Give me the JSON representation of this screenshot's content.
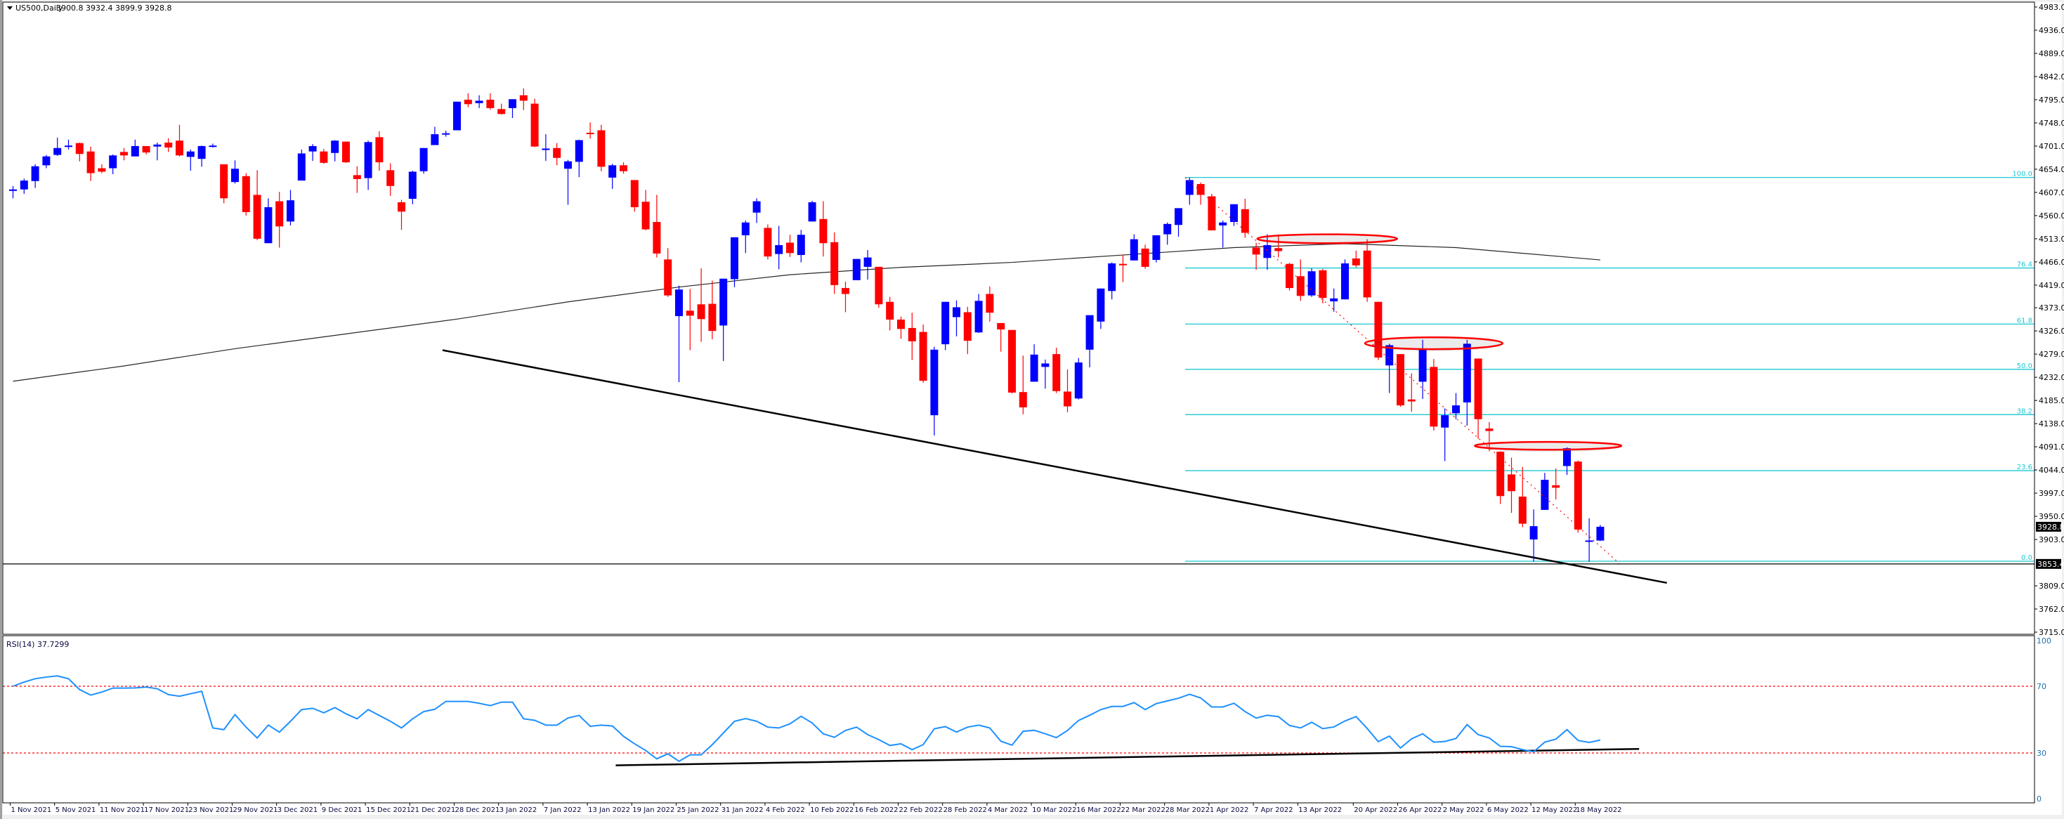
{
  "header": {
    "symbol_label": "US500,Daily",
    "ohlc": "3900.8 3932.4 3899.9 3928.8"
  },
  "rsi_label": "RSI(14) 37.7299",
  "chart_data": {
    "type": "candlestick",
    "title": "US500,Daily",
    "price_axis": {
      "range": [
        3715,
        4983
      ],
      "ticks": [
        "4983.0",
        "4936.0",
        "4889.0",
        "4842.0",
        "4795.0",
        "4748.0",
        "4701.0",
        "4654.0",
        "4607.0",
        "4560.0",
        "4513.0",
        "4466.0",
        "4419.0",
        "4373.0",
        "4326.0",
        "4279.0",
        "4232.0",
        "4185.0",
        "4138.0",
        "4091.0",
        "4044.0",
        "3997.0",
        "3950.0",
        "3903.0",
        "3809.0",
        "3762.0",
        "3715.0"
      ]
    },
    "current_price": {
      "value": 3928.8,
      "label": "3928.8"
    },
    "hline": {
      "value": 3853.4,
      "label": "3853.4"
    },
    "time_axis_labels": [
      {
        "bar": 0,
        "label": "1 Nov 2021"
      },
      {
        "bar": 4,
        "label": "5 Nov 2021"
      },
      {
        "bar": 8,
        "label": "11 Nov 2021"
      },
      {
        "bar": 12,
        "label": "17 Nov 2021"
      },
      {
        "bar": 16,
        "label": "23 Nov 2021"
      },
      {
        "bar": 20,
        "label": "29 Nov 2021"
      },
      {
        "bar": 24,
        "label": "3 Dec 2021"
      },
      {
        "bar": 28,
        "label": "9 Dec 2021"
      },
      {
        "bar": 32,
        "label": "15 Dec 2021"
      },
      {
        "bar": 36,
        "label": "21 Dec 2021"
      },
      {
        "bar": 40,
        "label": "28 Dec 2021"
      },
      {
        "bar": 44,
        "label": "3 Jan 2022"
      },
      {
        "bar": 48,
        "label": "7 Jan 2022"
      },
      {
        "bar": 52,
        "label": "13 Jan 2022"
      },
      {
        "bar": 56,
        "label": "19 Jan 2022"
      },
      {
        "bar": 60,
        "label": "25 Jan 2022"
      },
      {
        "bar": 64,
        "label": "31 Jan 2022"
      },
      {
        "bar": 68,
        "label": "4 Feb 2022"
      },
      {
        "bar": 72,
        "label": "10 Feb 2022"
      },
      {
        "bar": 76,
        "label": "16 Feb 2022"
      },
      {
        "bar": 80,
        "label": "22 Feb 2022"
      },
      {
        "bar": 84,
        "label": "28 Feb 2022"
      },
      {
        "bar": 88,
        "label": "4 Mar 2022"
      },
      {
        "bar": 92,
        "label": "10 Mar 2022"
      },
      {
        "bar": 96,
        "label": "16 Mar 2022"
      },
      {
        "bar": 100,
        "label": "22 Mar 2022"
      },
      {
        "bar": 104,
        "label": "28 Mar 2022"
      },
      {
        "bar": 108,
        "label": "1 Apr 2022"
      },
      {
        "bar": 112,
        "label": "7 Apr 2022"
      },
      {
        "bar": 116,
        "label": "13 Apr 2022"
      },
      {
        "bar": 121,
        "label": "20 Apr 2022"
      },
      {
        "bar": 125,
        "label": "26 Apr 2022"
      },
      {
        "bar": 129,
        "label": "2 May 2022"
      },
      {
        "bar": 133,
        "label": "6 May 2022"
      },
      {
        "bar": 137,
        "label": "12 May 2022"
      },
      {
        "bar": 141,
        "label": "18 May 2022"
      }
    ],
    "candles": [
      [
        4610,
        4620,
        4595,
        4613
      ],
      [
        4613,
        4635,
        4604,
        4631
      ],
      [
        4630,
        4664,
        4616,
        4660
      ],
      [
        4662,
        4683,
        4656,
        4680
      ],
      [
        4683,
        4718,
        4681,
        4697
      ],
      [
        4701,
        4714,
        4694,
        4702
      ],
      [
        4707,
        4708,
        4670,
        4685
      ],
      [
        4690,
        4700,
        4630,
        4646
      ],
      [
        4656,
        4664,
        4646,
        4649
      ],
      [
        4656,
        4684,
        4644,
        4682
      ],
      [
        4689,
        4697,
        4672,
        4682
      ],
      [
        4680,
        4714,
        4680,
        4701
      ],
      [
        4701,
        4701,
        4684,
        4688
      ],
      [
        4700,
        4708,
        4672,
        4704
      ],
      [
        4708,
        4717,
        4689,
        4698
      ],
      [
        4712,
        4744,
        4680,
        4682
      ],
      [
        4679,
        4694,
        4651,
        4690
      ],
      [
        4675,
        4702,
        4659,
        4701
      ],
      [
        4701,
        4706,
        4698,
        4702
      ],
      [
        4664,
        4664,
        4585,
        4595
      ],
      [
        4628,
        4672,
        4625,
        4655
      ],
      [
        4640,
        4646,
        4560,
        4567
      ],
      [
        4602,
        4652,
        4510,
        4513
      ],
      [
        4504,
        4595,
        4504,
        4577
      ],
      [
        4589,
        4608,
        4495,
        4538
      ],
      [
        4548,
        4612,
        4540,
        4591
      ],
      [
        4631,
        4694,
        4631,
        4686
      ],
      [
        4690,
        4705,
        4671,
        4701
      ],
      [
        4690,
        4695,
        4665,
        4667
      ],
      [
        4687,
        4713,
        4670,
        4712
      ],
      [
        4710,
        4710,
        4667,
        4668
      ],
      [
        4642,
        4660,
        4606,
        4634
      ],
      [
        4636,
        4712,
        4612,
        4709
      ],
      [
        4719,
        4731,
        4651,
        4668
      ],
      [
        4652,
        4666,
        4600,
        4620
      ],
      [
        4587,
        4592,
        4531,
        4568
      ],
      [
        4594,
        4651,
        4583,
        4649
      ],
      [
        4650,
        4697,
        4645,
        4697
      ],
      [
        4703,
        4740,
        4703,
        4725
      ],
      [
        4725,
        4732,
        4720,
        4727
      ],
      [
        4733,
        4791,
        4733,
        4791
      ],
      [
        4795,
        4808,
        4780,
        4786
      ],
      [
        4788,
        4804,
        4778,
        4793
      ],
      [
        4795,
        4808,
        4775,
        4778
      ],
      [
        4776,
        4787,
        4765,
        4766
      ],
      [
        4778,
        4796,
        4758,
        4796
      ],
      [
        4804,
        4818,
        4774,
        4793
      ],
      [
        4787,
        4797,
        4699,
        4700
      ],
      [
        4693,
        4725,
        4671,
        4696
      ],
      [
        4697,
        4707,
        4662,
        4677
      ],
      [
        4655,
        4673,
        4582,
        4670
      ],
      [
        4669,
        4714,
        4638,
        4713
      ],
      [
        4728,
        4749,
        4716,
        4726
      ],
      [
        4733,
        4744,
        4650,
        4659
      ],
      [
        4637,
        4665,
        4614,
        4662
      ],
      [
        4662,
        4668,
        4645,
        4650
      ],
      [
        4632,
        4632,
        4568,
        4577
      ],
      [
        4588,
        4612,
        4530,
        4532
      ],
      [
        4547,
        4602,
        4475,
        4483
      ],
      [
        4471,
        4494,
        4395,
        4398
      ],
      [
        4356,
        4418,
        4222,
        4410
      ],
      [
        4367,
        4411,
        4287,
        4357
      ],
      [
        4380,
        4453,
        4304,
        4350
      ],
      [
        4381,
        4428,
        4309,
        4326
      ],
      [
        4337,
        4432,
        4265,
        4432
      ],
      [
        4431,
        4516,
        4415,
        4516
      ],
      [
        4520,
        4550,
        4484,
        4546
      ],
      [
        4566,
        4595,
        4545,
        4589
      ],
      [
        4535,
        4542,
        4471,
        4477
      ],
      [
        4482,
        4539,
        4451,
        4500
      ],
      [
        4505,
        4521,
        4476,
        4484
      ],
      [
        4480,
        4531,
        4465,
        4521
      ],
      [
        4548,
        4590,
        4548,
        4587
      ],
      [
        4553,
        4589,
        4477,
        4504
      ],
      [
        4506,
        4526,
        4401,
        4419
      ],
      [
        4413,
        4426,
        4364,
        4401
      ],
      [
        4429,
        4472,
        4429,
        4472
      ],
      [
        4456,
        4490,
        4430,
        4475
      ],
      [
        4456,
        4456,
        4373,
        4380
      ],
      [
        4385,
        4395,
        4327,
        4349
      ],
      [
        4349,
        4355,
        4310,
        4330
      ],
      [
        4332,
        4363,
        4267,
        4305
      ],
      [
        4324,
        4339,
        4221,
        4225
      ],
      [
        4155,
        4294,
        4114,
        4288
      ],
      [
        4299,
        4385,
        4287,
        4385
      ],
      [
        4354,
        4388,
        4315,
        4374
      ],
      [
        4364,
        4375,
        4279,
        4306
      ],
      [
        4323,
        4401,
        4322,
        4387
      ],
      [
        4401,
        4416,
        4345,
        4363
      ],
      [
        4342,
        4342,
        4284,
        4329
      ],
      [
        4328,
        4328,
        4199,
        4201
      ],
      [
        4202,
        4276,
        4157,
        4171
      ],
      [
        4223,
        4299,
        4223,
        4278
      ],
      [
        4253,
        4268,
        4209,
        4260
      ],
      [
        4279,
        4292,
        4200,
        4204
      ],
      [
        4203,
        4248,
        4161,
        4173
      ],
      [
        4189,
        4271,
        4187,
        4262
      ],
      [
        4288,
        4358,
        4252,
        4358
      ],
      [
        4345,
        4412,
        4330,
        4412
      ],
      [
        4407,
        4465,
        4390,
        4463
      ],
      [
        4462,
        4481,
        4425,
        4461
      ],
      [
        4469,
        4522,
        4469,
        4512
      ],
      [
        4493,
        4501,
        4452,
        4456
      ],
      [
        4470,
        4520,
        4465,
        4520
      ],
      [
        4522,
        4546,
        4501,
        4543
      ],
      [
        4541,
        4575,
        4517,
        4575
      ],
      [
        4602,
        4637,
        4582,
        4632
      ],
      [
        4624,
        4627,
        4582,
        4602
      ],
      [
        4599,
        4604,
        4530,
        4530
      ],
      [
        4540,
        4550,
        4495,
        4546
      ],
      [
        4547,
        4583,
        4539,
        4583
      ],
      [
        4573,
        4594,
        4515,
        4525
      ],
      [
        4495,
        4505,
        4450,
        4481
      ],
      [
        4474,
        4522,
        4450,
        4500
      ],
      [
        4494,
        4521,
        4475,
        4488
      ],
      [
        4462,
        4464,
        4408,
        4413
      ],
      [
        4437,
        4471,
        4387,
        4397
      ],
      [
        4398,
        4453,
        4395,
        4447
      ],
      [
        4449,
        4452,
        4382,
        4393
      ],
      [
        4386,
        4412,
        4365,
        4392
      ],
      [
        4390,
        4471,
        4390,
        4463
      ],
      [
        4473,
        4489,
        4455,
        4459
      ],
      [
        4489,
        4512,
        4385,
        4394
      ],
      [
        4385,
        4385,
        4267,
        4272
      ],
      [
        4256,
        4300,
        4200,
        4297
      ],
      [
        4279,
        4279,
        4172,
        4175
      ],
      [
        4187,
        4240,
        4162,
        4183
      ],
      [
        4223,
        4308,
        4188,
        4288
      ],
      [
        4253,
        4269,
        4124,
        4132
      ],
      [
        4130,
        4169,
        4062,
        4155
      ],
      [
        4159,
        4200,
        4147,
        4175
      ],
      [
        4181,
        4308,
        4134,
        4300
      ],
      [
        4270,
        4270,
        4107,
        4147
      ],
      [
        4128,
        4141,
        4082,
        4123
      ],
      [
        4081,
        4082,
        3975,
        3991
      ],
      [
        4035,
        4069,
        3957,
        4001
      ],
      [
        3990,
        4050,
        3928,
        3935
      ],
      [
        3903,
        3964,
        3858,
        3930
      ],
      [
        3963,
        4038,
        3963,
        4024
      ],
      [
        4013,
        4047,
        3984,
        4008
      ],
      [
        4052,
        4090,
        4034,
        4088
      ],
      [
        4061,
        4063,
        3917,
        3923
      ],
      [
        3900,
        3946,
        3858,
        3901
      ],
      [
        3900.8,
        3932.4,
        3899.9,
        3928.8
      ]
    ],
    "sma200": [
      [
        0,
        4224
      ],
      [
        10,
        4255
      ],
      [
        20,
        4290
      ],
      [
        30,
        4320
      ],
      [
        40,
        4350
      ],
      [
        50,
        4385
      ],
      [
        60,
        4415
      ],
      [
        70,
        4440
      ],
      [
        80,
        4455
      ],
      [
        90,
        4465
      ],
      [
        100,
        4480
      ],
      [
        110,
        4495
      ],
      [
        120,
        4503
      ],
      [
        130,
        4495
      ],
      [
        143,
        4470
      ]
    ],
    "trendline": {
      "from": [
        38.7,
        4287
      ],
      "to": [
        149,
        3815
      ]
    },
    "dotted_trend": {
      "from": [
        105.6,
        4637
      ],
      "to": [
        144.7,
        3855
      ]
    },
    "ellipses": [
      {
        "bar_center": 118.4,
        "price": 4513,
        "bar_halfwidth": 6.3,
        "price_halfheight": 9
      },
      {
        "bar_center": 128.0,
        "price": 4301,
        "bar_halfwidth": 6.2,
        "price_halfheight": 12
      },
      {
        "bar_center": 138.3,
        "price": 4093,
        "bar_halfwidth": 6.6,
        "price_halfheight": 8
      }
    ],
    "fibonacci": {
      "start_bar": 105.6,
      "high": 4637.3,
      "low": 3858.9,
      "levels": [
        {
          "ratio": 100,
          "label": "100.0"
        },
        {
          "ratio": 76.4,
          "label": "76.4"
        },
        {
          "ratio": 61.8,
          "label": "61.8"
        },
        {
          "ratio": 50,
          "label": "50.0"
        },
        {
          "ratio": 38.2,
          "label": "38.2"
        },
        {
          "ratio": 23.6,
          "label": "23.6"
        },
        {
          "ratio": 0,
          "label": "0.0"
        }
      ]
    },
    "rsi": {
      "period": 14,
      "value": 37.7299,
      "levels": [
        70,
        30
      ],
      "axis_labels": [
        {
          "value": 100,
          "label": "100"
        },
        {
          "value": 70,
          "label": "70"
        },
        {
          "value": 30,
          "label": "30"
        },
        {
          "value": 0,
          "label": "0"
        }
      ],
      "trendline": {
        "from": [
          54.3,
          22.6
        ],
        "to": [
          146.5,
          32.4
        ]
      },
      "values": [
        70,
        72.5,
        74.5,
        75.5,
        76.2,
        74.5,
        68,
        64.7,
        66.5,
        68.9,
        68.9,
        69,
        69.5,
        68.5,
        65,
        64,
        65.5,
        67,
        45,
        44,
        53,
        45.5,
        39,
        46.7,
        42.5,
        49,
        56,
        56.8,
        54.1,
        57.2,
        53.5,
        50.5,
        56,
        52.5,
        49,
        45,
        50.5,
        54.8,
        56.2,
        60.9,
        60.9,
        60.9,
        59.8,
        58.4,
        60.5,
        60.5,
        50.5,
        49.6,
        46.7,
        46.7,
        51,
        52.5,
        46,
        46.7,
        46.2,
        40,
        35.5,
        31.5,
        26.5,
        29.5,
        25,
        28.9,
        28.9,
        35,
        42,
        49,
        50.6,
        49,
        45.5,
        45,
        47.5,
        52,
        48,
        41.5,
        39.4,
        43.5,
        45.5,
        41,
        38,
        34.5,
        35.5,
        32,
        35,
        44.5,
        45.8,
        42.5,
        45.5,
        46.7,
        45,
        37,
        34.7,
        43,
        43.6,
        41.5,
        39.2,
        43.5,
        49.5,
        52.6,
        56,
        57.9,
        57.9,
        60.2,
        56,
        59.6,
        61.2,
        62.8,
        65.2,
        63,
        57.6,
        57.6,
        59.8,
        54.8,
        50.9,
        52.6,
        51.8,
        46.5,
        45,
        48.4,
        44.6,
        45.6,
        49.2,
        51.8,
        44.7,
        36.8,
        40.1,
        33,
        38.5,
        41.5,
        36.5,
        36.9,
        38.7,
        47,
        41,
        39,
        34,
        33.8,
        32,
        30.7,
        36.5,
        38.3,
        44,
        37.5,
        36.3,
        37.73
      ]
    },
    "colors": {
      "bull": "#0000ff",
      "bear": "#ff0000",
      "sma": "#000000",
      "trendline": "#000000",
      "fib": "#1ec8d2",
      "ellipse": "#ff0000",
      "rsi_line": "#1e90ff",
      "rsi_levels": "#ff0000"
    }
  }
}
